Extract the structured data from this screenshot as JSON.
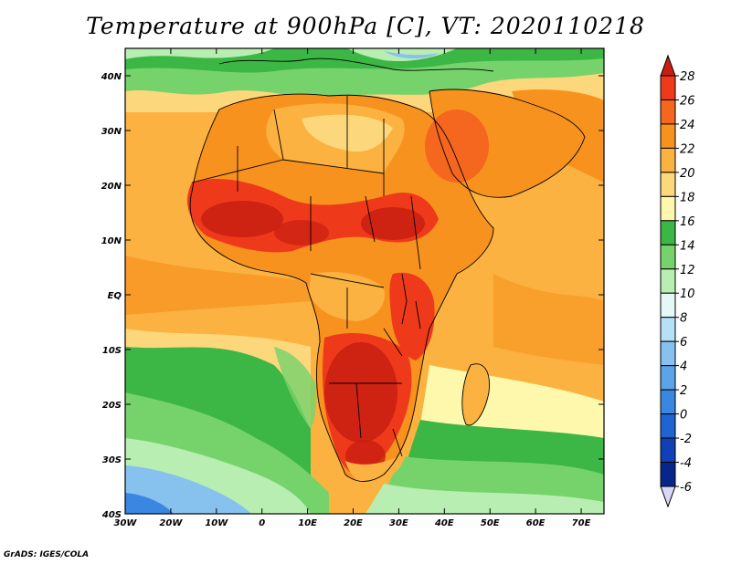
{
  "title": "Temperature at 900hPa [C], VT: 2020110218",
  "credit": "GrADS: IGES/COLA",
  "map": {
    "type": "heatmap",
    "variable": "Temperature at 900hPa",
    "units": "C",
    "valid_time": "2020110218",
    "lon_range": [
      -30,
      75
    ],
    "lat_range": [
      -40,
      45
    ],
    "lon_tick_labels": [
      "30W",
      "20W",
      "10W",
      "0",
      "10E",
      "20E",
      "30E",
      "40E",
      "50E",
      "60E",
      "70E"
    ],
    "lat_tick_labels": [
      "40N",
      "30N",
      "20N",
      "10N",
      "EQ",
      "10S",
      "20S",
      "30S",
      "40S"
    ]
  },
  "colorbar": {
    "levels": [
      "28",
      "26",
      "24",
      "22",
      "20",
      "18",
      "16",
      "14",
      "12",
      "10",
      "8",
      "6",
      "4",
      "2",
      "0",
      "-2",
      "-4",
      "-6"
    ],
    "colors": [
      "#c81e12",
      "#ee3a1a",
      "#f5661e",
      "#f8921f",
      "#fbb240",
      "#fdd77c",
      "#fef8ad",
      "#3cb645",
      "#76d36c",
      "#b8eeb1",
      "#e6f7f7",
      "#b7dff5",
      "#87c2ef",
      "#5aa4e7",
      "#3a86e1",
      "#1f64d0",
      "#1040b5",
      "#08268a",
      "#d8d8f6"
    ]
  }
}
